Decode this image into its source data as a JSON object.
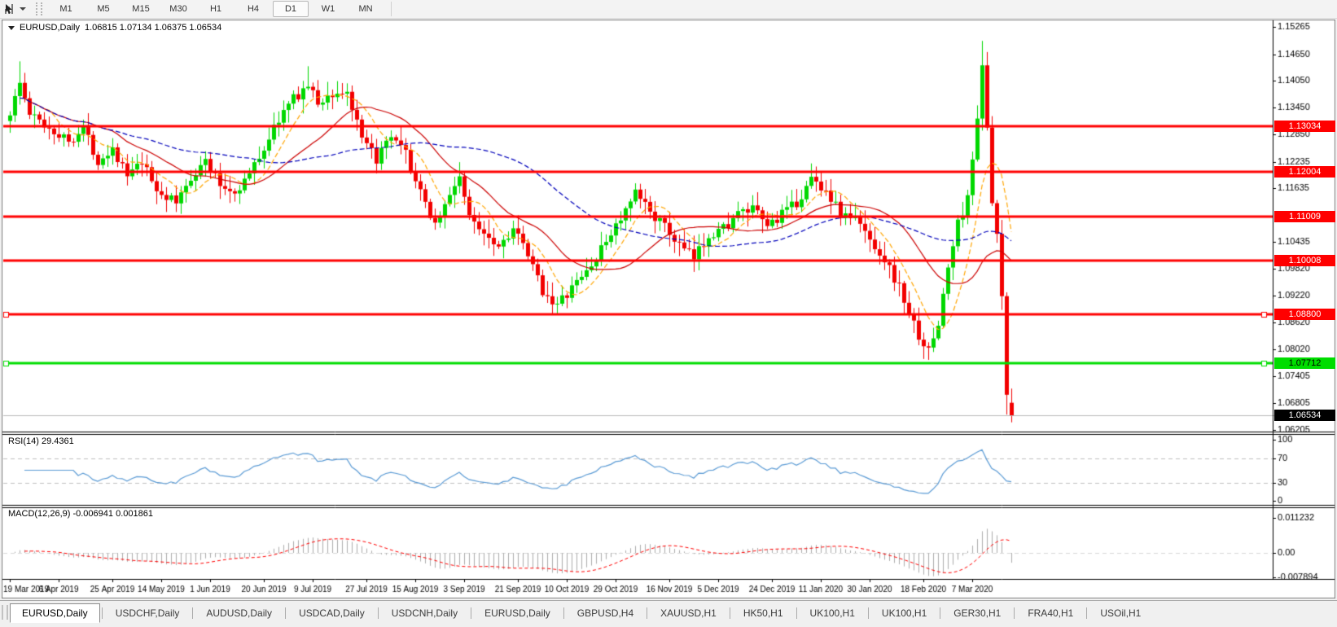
{
  "toolbar": {
    "timeframes": [
      {
        "label": "M1",
        "active": false
      },
      {
        "label": "M5",
        "active": false
      },
      {
        "label": "M15",
        "active": false
      },
      {
        "label": "M30",
        "active": false
      },
      {
        "label": "H1",
        "active": false
      },
      {
        "label": "H4",
        "active": false
      },
      {
        "label": "D1",
        "active": true
      },
      {
        "label": "W1",
        "active": false
      },
      {
        "label": "MN",
        "active": false
      }
    ]
  },
  "chart": {
    "title": {
      "symbol": "EURUSD,Daily",
      "ohlc": "1.06815 1.07134 1.06375 1.06534"
    },
    "rsi_label": "RSI(14) 29.4361",
    "macd_label": "MACD(12,26,9) -0.006941 0.001861"
  },
  "chart_data": {
    "type": "candlestick",
    "symbol": "EURUSD",
    "timeframe": "Daily",
    "last_candle": {
      "o": 1.06815,
      "h": 1.07134,
      "l": 1.06375,
      "c": 1.06534
    },
    "price_axis_ticks": [
      "1.15265",
      "1.14650",
      "1.14050",
      "1.13450",
      "1.12850",
      "1.12235",
      "1.11635",
      "1.10435",
      "1.09820",
      "1.09220",
      "1.08620",
      "1.08020",
      "1.07405",
      "1.06805",
      "1.06205"
    ],
    "price_levels": [
      {
        "label": "1.13034",
        "value": 1.13034,
        "type": "resistance",
        "color": "#FF0000",
        "handles": false
      },
      {
        "label": "1.12004",
        "value": 1.12004,
        "type": "resistance",
        "color": "#FF0000",
        "handles": false
      },
      {
        "label": "1.11009",
        "value": 1.11009,
        "type": "resistance",
        "color": "#FF0000",
        "handles": false
      },
      {
        "label": "1.10008",
        "value": 1.10008,
        "type": "resistance",
        "color": "#FF0000",
        "handles": false
      },
      {
        "label": "1.08800",
        "value": 1.088,
        "type": "resistance",
        "color": "#FF0000",
        "handles": true
      },
      {
        "label": "1.07712",
        "value": 1.07712,
        "type": "support",
        "color": "#00DD00",
        "handles": true
      },
      {
        "label": "1.06534",
        "value": 1.06534,
        "type": "current-price",
        "color": "#000000",
        "handles": false
      }
    ],
    "date_labels": [
      "19 Mar 2019",
      "6 Apr 2019",
      "25 Apr 2019",
      "14 May 2019",
      "1 Jun 2019",
      "20 Jun 2019",
      "9 Jul 2019",
      "27 Jul 2019",
      "15 Aug 2019",
      "3 Sep 2019",
      "21 Sep 2019",
      "10 Oct 2019",
      "29 Oct 2019",
      "16 Nov 2019",
      "5 Dec 2019",
      "24 Dec 2019",
      "11 Jan 2020",
      "30 Jan 2020",
      "18 Feb 2020",
      "7 Mar 2020"
    ],
    "num_candles": 206,
    "price_anchors": [
      [
        0,
        1.1335
      ],
      [
        2,
        1.14
      ],
      [
        4,
        1.133
      ],
      [
        8,
        1.13
      ],
      [
        12,
        1.127
      ],
      [
        15,
        1.13
      ],
      [
        18,
        1.1225
      ],
      [
        21,
        1.1255
      ],
      [
        24,
        1.119
      ],
      [
        27,
        1.122
      ],
      [
        30,
        1.116
      ],
      [
        34,
        1.113
      ],
      [
        37,
        1.119
      ],
      [
        40,
        1.1225
      ],
      [
        43,
        1.117
      ],
      [
        46,
        1.1155
      ],
      [
        49,
        1.1195
      ],
      [
        52,
        1.1255
      ],
      [
        55,
        1.132
      ],
      [
        58,
        1.1365
      ],
      [
        61,
        1.1395
      ],
      [
        63,
        1.1355
      ],
      [
        66,
        1.1375
      ],
      [
        69,
        1.138
      ],
      [
        72,
        1.127
      ],
      [
        75,
        1.123
      ],
      [
        78,
        1.1275
      ],
      [
        81,
        1.124
      ],
      [
        84,
        1.115
      ],
      [
        87,
        1.1085
      ],
      [
        90,
        1.1145
      ],
      [
        92,
        1.1195
      ],
      [
        94,
        1.1095
      ],
      [
        97,
        1.107
      ],
      [
        100,
        1.1035
      ],
      [
        103,
        1.1075
      ],
      [
        106,
        1.101
      ],
      [
        109,
        1.0935
      ],
      [
        112,
        1.09
      ],
      [
        114,
        1.0925
      ],
      [
        117,
        1.0965
      ],
      [
        120,
        1.1005
      ],
      [
        123,
        1.1065
      ],
      [
        126,
        1.111
      ],
      [
        128,
        1.115
      ],
      [
        131,
        1.1115
      ],
      [
        134,
        1.1075
      ],
      [
        137,
        1.1035
      ],
      [
        140,
        1.1005
      ],
      [
        143,
        1.106
      ],
      [
        146,
        1.1075
      ],
      [
        149,
        1.1105
      ],
      [
        152,
        1.1115
      ],
      [
        155,
        1.108
      ],
      [
        158,
        1.1105
      ],
      [
        161,
        1.113
      ],
      [
        164,
        1.1185
      ],
      [
        167,
        1.116
      ],
      [
        170,
        1.1105
      ],
      [
        173,
        1.1095
      ],
      [
        176,
        1.105
      ],
      [
        179,
        1.1005
      ],
      [
        182,
        1.094
      ],
      [
        185,
        1.0855
      ],
      [
        188,
        1.0795
      ],
      [
        190,
        1.086
      ],
      [
        192,
        1.0985
      ],
      [
        194,
        1.1085
      ],
      [
        196,
        1.114
      ],
      [
        197,
        1.123
      ],
      [
        198,
        1.133
      ],
      [
        199,
        1.1445
      ],
      [
        200,
        1.129
      ],
      [
        201,
        1.113
      ],
      [
        202,
        1.105
      ],
      [
        203,
        1.092
      ],
      [
        204,
        1.0695
      ],
      [
        205,
        1.0653
      ]
    ],
    "spikes": [
      {
        "i": 2,
        "h": 1.1449
      },
      {
        "i": 61,
        "h": 1.1438
      },
      {
        "i": 92,
        "h": 1.1208
      },
      {
        "i": 112,
        "l": 1.0879
      },
      {
        "i": 188,
        "l": 1.0778
      },
      {
        "i": 199,
        "h": 1.1495
      },
      {
        "i": 200,
        "h": 1.142
      },
      {
        "i": 204,
        "l": 1.0655
      }
    ],
    "indicators": {
      "rsi": {
        "name": "RSI",
        "period": 14,
        "current": 29.4361,
        "levels": [
          70,
          30
        ],
        "axis_ticks": [
          "100",
          "70",
          "30",
          "0"
        ],
        "color": "#5B9BD5"
      },
      "macd": {
        "name": "MACD",
        "fast": 12,
        "slow": 26,
        "signal_period": 9,
        "current_main": -0.006941,
        "current_signal": 0.001861,
        "axis_ticks": [
          "0.011232",
          "0.00",
          "-0.007894"
        ],
        "hist_color": "#ADADAD",
        "signal_color": "#FF0000"
      }
    },
    "ma_overlays": [
      {
        "period": 8,
        "color": "#FFA500",
        "dash": true
      },
      {
        "period": 21,
        "color": "#CC0000",
        "dash": false
      },
      {
        "period": 50,
        "color": "#0000BB",
        "dash": true
      }
    ],
    "colors": {
      "bull": "#00D800",
      "bear": "#F20000",
      "background": "#FFFFFF",
      "frame": "#000000",
      "current_line": "#B8B8B8",
      "rsi_level_line": "#C0C0C0"
    }
  },
  "tabs": [
    {
      "label": "EURUSD,Daily",
      "active": true
    },
    {
      "label": "USDCHF,Daily",
      "active": false
    },
    {
      "label": "AUDUSD,Daily",
      "active": false
    },
    {
      "label": "USDCAD,Daily",
      "active": false
    },
    {
      "label": "USDCNH,Daily",
      "active": false
    },
    {
      "label": "EURUSD,Daily",
      "active": false
    },
    {
      "label": "GBPUSD,H4",
      "active": false
    },
    {
      "label": "XAUUSD,H1",
      "active": false
    },
    {
      "label": "HK50,H1",
      "active": false
    },
    {
      "label": "UK100,H1",
      "active": false
    },
    {
      "label": "UK100,H1",
      "active": false
    },
    {
      "label": "GER30,H1",
      "active": false
    },
    {
      "label": "FRA40,H1",
      "active": false
    },
    {
      "label": "USOil,H1",
      "active": false
    }
  ]
}
